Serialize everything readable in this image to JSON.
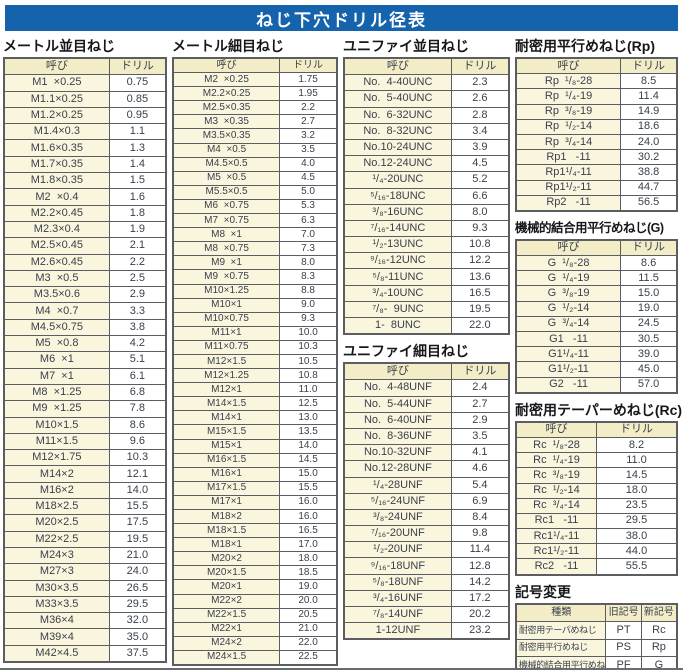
{
  "page_title": "ねじ下穴ドリル径表",
  "colors": {
    "title_bar_bg": "#1563ad",
    "title_bar_text": "#ffffff",
    "table_header_bg": "#f2edc7",
    "name_cell_bg": "#faf6de",
    "value_cell_bg": "#ffffff",
    "border": "#5c5d61",
    "text": "#39404c"
  },
  "sections": {
    "metric_coarse": {
      "title": "メートル並目ねじ",
      "head": [
        "呼び",
        "ドリル"
      ],
      "rows": [
        [
          "M1  ×0.25",
          "0.75"
        ],
        [
          "M1.1×0.25",
          "0.85"
        ],
        [
          "M1.2×0.25",
          "0.95"
        ],
        [
          "M1.4×0.3",
          "1.1"
        ],
        [
          "M1.6×0.35",
          "1.3"
        ],
        [
          "M1.7×0.35",
          "1.4"
        ],
        [
          "M1.8×0.35",
          "1.5"
        ],
        [
          "M2  ×0.4",
          "1.6"
        ],
        [
          "M2.2×0.45",
          "1.8"
        ],
        [
          "M2.3×0.4",
          "1.9"
        ],
        [
          "M2.5×0.45",
          "2.1"
        ],
        [
          "M2.6×0.45",
          "2.2"
        ],
        [
          "M3  ×0.5",
          "2.5"
        ],
        [
          "M3.5×0.6",
          "2.9"
        ],
        [
          "M4  ×0.7",
          "3.3"
        ],
        [
          "M4.5×0.75",
          "3.8"
        ],
        [
          "M5  ×0.8",
          "4.2"
        ],
        [
          "M6  ×1",
          "5.1"
        ],
        [
          "M7  ×1",
          "6.1"
        ],
        [
          "M8  ×1.25",
          "6.8"
        ],
        [
          "M9  ×1.25",
          "7.8"
        ],
        [
          "M10×1.5",
          "8.6"
        ],
        [
          "M11×1.5",
          "9.6"
        ],
        [
          "M12×1.75",
          "10.3"
        ],
        [
          "M14×2",
          "12.1"
        ],
        [
          "M16×2",
          "14.0"
        ],
        [
          "M18×2.5",
          "15.5"
        ],
        [
          "M20×2.5",
          "17.5"
        ],
        [
          "M22×2.5",
          "19.5"
        ],
        [
          "M24×3",
          "21.0"
        ],
        [
          "M27×3",
          "24.0"
        ],
        [
          "M30×3.5",
          "26.5"
        ],
        [
          "M33×3.5",
          "29.5"
        ],
        [
          "M36×4",
          "32.0"
        ],
        [
          "M39×4",
          "35.0"
        ],
        [
          "M42×4.5",
          "37.5"
        ]
      ]
    },
    "metric_fine": {
      "title": "メートル細目ねじ",
      "head": [
        "呼び",
        "ドリル"
      ],
      "rows": [
        [
          "M2  ×0.25",
          "1.75"
        ],
        [
          "M2.2×0.25",
          "1.95"
        ],
        [
          "M2.5×0.35",
          "2.2"
        ],
        [
          "M3  ×0.35",
          "2.7"
        ],
        [
          "M3.5×0.35",
          "3.2"
        ],
        [
          "M4  ×0.5",
          "3.5"
        ],
        [
          "M4.5×0.5",
          "4.0"
        ],
        [
          "M5  ×0.5",
          "4.5"
        ],
        [
          "M5.5×0.5",
          "5.0"
        ],
        [
          "M6  ×0.75",
          "5.3"
        ],
        [
          "M7  ×0.75",
          "6.3"
        ],
        [
          "M8  ×1",
          "7.0"
        ],
        [
          "M8  ×0.75",
          "7.3"
        ],
        [
          "M9  ×1",
          "8.0"
        ],
        [
          "M9  ×0.75",
          "8.3"
        ],
        [
          "M10×1.25",
          "8.8"
        ],
        [
          "M10×1",
          "9.0"
        ],
        [
          "M10×0.75",
          "9.3"
        ],
        [
          "M11×1",
          "10.0"
        ],
        [
          "M11×0.75",
          "10.3"
        ],
        [
          "M12×1.5",
          "10.5"
        ],
        [
          "M12×1.25",
          "10.8"
        ],
        [
          "M12×1",
          "11.0"
        ],
        [
          "M14×1.5",
          "12.5"
        ],
        [
          "M14×1",
          "13.0"
        ],
        [
          "M15×1.5",
          "13.5"
        ],
        [
          "M15×1",
          "14.0"
        ],
        [
          "M16×1.5",
          "14.5"
        ],
        [
          "M16×1",
          "15.0"
        ],
        [
          "M17×1.5",
          "15.5"
        ],
        [
          "M17×1",
          "16.0"
        ],
        [
          "M18×2",
          "16.0"
        ],
        [
          "M18×1.5",
          "16.5"
        ],
        [
          "M18×1",
          "17.0"
        ],
        [
          "M20×2",
          "18.0"
        ],
        [
          "M20×1.5",
          "18.5"
        ],
        [
          "M20×1",
          "19.0"
        ],
        [
          "M22×2",
          "20.0"
        ],
        [
          "M22×1.5",
          "20.5"
        ],
        [
          "M22×1",
          "21.0"
        ],
        [
          "M24×2",
          "22.0"
        ],
        [
          "M24×1.5",
          "22.5"
        ]
      ]
    },
    "unified_coarse": {
      "title": "ユニファイ並目ねじ",
      "head": [
        "呼び",
        "ドリル"
      ],
      "rows": [
        [
          "No.  4-40UNC",
          "2.3"
        ],
        [
          "No.  5-40UNC",
          "2.6"
        ],
        [
          "No.  6-32UNC",
          "2.8"
        ],
        [
          "No.  8-32UNC",
          "3.4"
        ],
        [
          "No.10-24UNC",
          "3.9"
        ],
        [
          "No.12-24UNC",
          "4.5"
        ],
        [
          "¹/₄-20UNC",
          "5.2"
        ],
        [
          "⁵/₁₆-18UNC",
          "6.6"
        ],
        [
          "³/₈-16UNC",
          "8.0"
        ],
        [
          "⁷/₁₆-14UNC",
          "9.3"
        ],
        [
          "¹/₂-13UNC",
          "10.8"
        ],
        [
          "⁹/₁₆-12UNC",
          "12.2"
        ],
        [
          "⁵/₈-11UNC",
          "13.6"
        ],
        [
          "³/₄-10UNC",
          "16.5"
        ],
        [
          "⁷/₈-  9UNC",
          "19.5"
        ],
        [
          "1-  8UNC",
          "22.0"
        ]
      ]
    },
    "unified_fine": {
      "title": "ユニファイ細目ねじ",
      "head": [
        "呼び",
        "ドリル"
      ],
      "rows": [
        [
          "No.  4-48UNF",
          "2.4"
        ],
        [
          "No.  5-44UNF",
          "2.7"
        ],
        [
          "No.  6-40UNF",
          "2.9"
        ],
        [
          "No.  8-36UNF",
          "3.5"
        ],
        [
          "No.10-32UNF",
          "4.1"
        ],
        [
          "No.12-28UNF",
          "4.6"
        ],
        [
          "¹/₄-28UNF",
          "5.4"
        ],
        [
          "⁵/₁₆-24UNF",
          "6.9"
        ],
        [
          "³/₈-24UNF",
          "8.4"
        ],
        [
          "⁷/₁₆-20UNF",
          "9.8"
        ],
        [
          "¹/₂-20UNF",
          "11.4"
        ],
        [
          "⁹/₁₆-18UNF",
          "12.8"
        ],
        [
          "⁵/₈-18UNF",
          "14.2"
        ],
        [
          "³/₄-16UNF",
          "17.2"
        ],
        [
          "⁷/₈-14UNF",
          "20.2"
        ],
        [
          "1-12UNF",
          "23.2"
        ]
      ]
    },
    "rp": {
      "title": "耐密用平行めねじ(Rp)",
      "head": [
        "呼び",
        "ドリル"
      ],
      "rows": [
        [
          "Rp  ¹/₈-28",
          "8.5"
        ],
        [
          "Rp  ¹/₄-19",
          "11.4"
        ],
        [
          "Rp  ³/₈-19",
          "14.9"
        ],
        [
          "Rp  ¹/₂-14",
          "18.6"
        ],
        [
          "Rp  ³/₄-14",
          "24.0"
        ],
        [
          "Rp1   -11",
          "30.2"
        ],
        [
          "Rp1¹/₄-11",
          "38.8"
        ],
        [
          "Rp1¹/₂-11",
          "44.7"
        ],
        [
          "Rp2   -11",
          "56.5"
        ]
      ]
    },
    "g": {
      "title": "機械的結合用平行めねじ(G)",
      "head": [
        "呼び",
        "ドリル"
      ],
      "rows": [
        [
          "G  ¹/₈-28",
          "8.6"
        ],
        [
          "G  ¹/₄-19",
          "11.5"
        ],
        [
          "G  ³/₈-19",
          "15.0"
        ],
        [
          "G  ¹/₂-14",
          "19.0"
        ],
        [
          "G  ³/₄-14",
          "24.5"
        ],
        [
          "G1   -11",
          "30.5"
        ],
        [
          "G1¹/₄-11",
          "39.0"
        ],
        [
          "G1¹/₂-11",
          "45.0"
        ],
        [
          "G2   -11",
          "57.0"
        ]
      ]
    },
    "rc": {
      "title": "耐密用テーパーめねじ(Rc)",
      "head": [
        "呼び",
        "ドリル"
      ],
      "rows": [
        [
          "Rc  ¹/₈-28",
          "8.2"
        ],
        [
          "Rc  ¹/₄-19",
          "11.0"
        ],
        [
          "Rc  ³/₈-19",
          "14.5"
        ],
        [
          "Rc  ¹/₂-14",
          "18.0"
        ],
        [
          "Rc  ³/₄-14",
          "23.5"
        ],
        [
          "Rc1   -11",
          "29.5"
        ],
        [
          "Rc1¹/₄-11",
          "38.0"
        ],
        [
          "Rc1¹/₂-11",
          "44.0"
        ],
        [
          "Rc2   -11",
          "55.5"
        ]
      ]
    },
    "symbol_change": {
      "title": "記号変更",
      "head": [
        "種類",
        "旧記号",
        "新記号"
      ],
      "rows": [
        [
          "耐密用テーパめねじ",
          "PT",
          "Rc"
        ],
        [
          "耐密用平行めねじ",
          "PS",
          "Rp"
        ],
        [
          "機械的結合用平行めねじ",
          "PF",
          "G"
        ]
      ]
    }
  }
}
